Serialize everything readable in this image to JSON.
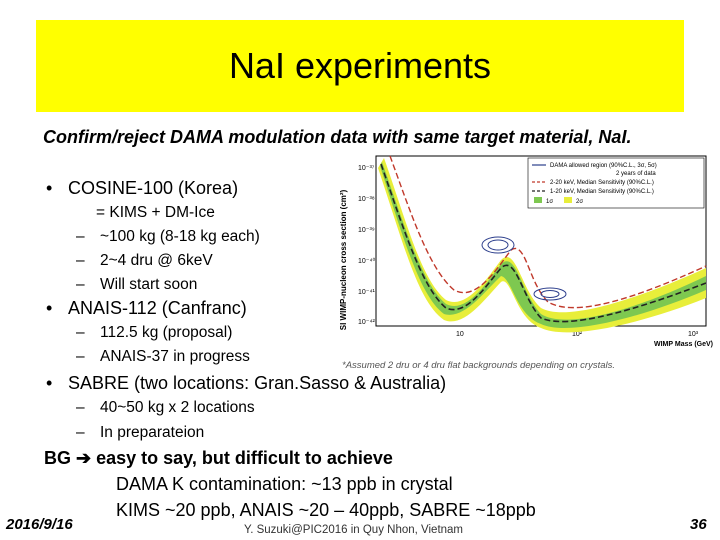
{
  "slide": {
    "title": "NaI experiments",
    "intro": "Confirm/reject DAMA modulation data with same target material, NaI.",
    "cosine": {
      "heading": "COSINE-100 (Korea)",
      "items": [
        "= KIMS + DM-Ice",
        "~100 kg (8-18 kg each)",
        "2~4 dru @ 6keV",
        "Will start soon"
      ]
    },
    "anais": {
      "heading": "ANAIS-112 (Canfranc)",
      "items": [
        "112.5 kg (proposal)",
        "ANAIS-37 in progress"
      ]
    },
    "sabre": {
      "heading": "SABRE (two locations: Gran.Sasso & Australia)",
      "items": [
        "40~50 kg x 2 locations",
        "In preparateion"
      ]
    },
    "bg": {
      "lead": "BG",
      "text": "easy to say, but difficult to achieve",
      "line2": "DAMA K contamination: ~13 ppb in crystal",
      "line3": "KIMS ~20 ppb,   ANAIS ~20 – 40ppb,   SABRE ~18ppb"
    }
  },
  "footer": {
    "date": "2016/9/16",
    "center": "Y. Suzuki@PIC2016 in Quy Nhon, Vietnam",
    "page": "36"
  },
  "chart_data": {
    "type": "line",
    "ylabel": "SI WIMP-nucleon cross section (cm²)",
    "xlabel": "WIMP Mass (GeV)",
    "y_tick_labels": [
      "10⁻³⁷",
      "10⁻³⁸",
      "10⁻³⁹",
      "10⁻⁴⁰",
      "10⁻⁴¹",
      "10⁻⁴²"
    ],
    "x_tick_labels": [
      "10",
      "10²",
      "10³"
    ],
    "legend_title": "2 years of data",
    "legend": [
      "DAMA allowed region (90%C.L., 3σ, 5σ)",
      "2-20 keV, Median Sensitivity (90%C.L.)",
      "1-20 keV, Median Sensitivity (90%C.L.)",
      "1σ",
      "2σ"
    ],
    "note": "*Assumed 2 dru or 4 dru flat backgrounds depending on crystals.",
    "colors": {
      "red": "#c0392b",
      "black": "#222222",
      "yellow": "#e8ee3a",
      "green": "#7ec850",
      "dama": "#2c3e8c"
    }
  }
}
